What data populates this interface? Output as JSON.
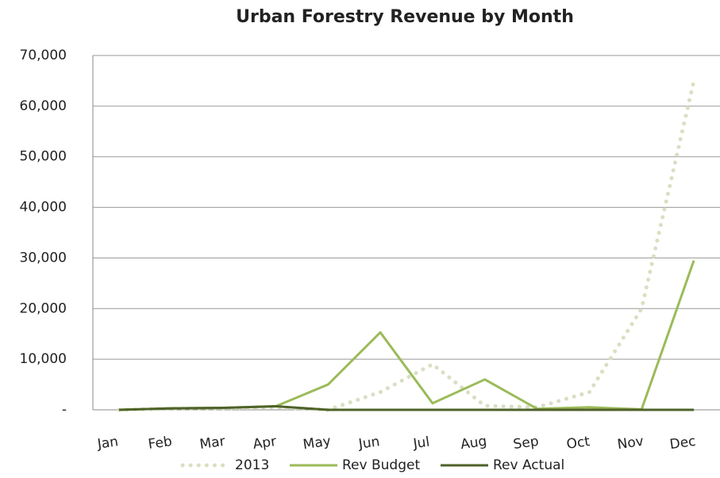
{
  "chart_data": {
    "type": "line",
    "title": "Urban Forestry Revenue by Month",
    "categories": [
      "Jan",
      "Feb",
      "Mar",
      "Apr",
      "May",
      "Jun",
      "Jul",
      "Aug",
      "Sep",
      "Oct",
      "Nov",
      "Dec"
    ],
    "series": [
      {
        "name": "2013",
        "color": "#d7e0c3",
        "dashed": true,
        "values": [
          0,
          200,
          300,
          500,
          0,
          3500,
          9000,
          800,
          500,
          3500,
          20000,
          65000
        ]
      },
      {
        "name": "Rev Budget",
        "color": "#9bbb59",
        "values": [
          0,
          300,
          400,
          700,
          5000,
          15300,
          1300,
          6000,
          200,
          500,
          100,
          29500
        ]
      },
      {
        "name": "Rev Actual",
        "color": "#4f6228",
        "values": [
          0,
          300,
          400,
          700,
          0,
          0,
          0,
          0,
          0,
          0,
          0,
          0
        ]
      }
    ],
    "ylim": [
      0,
      70000
    ],
    "yticks": [
      {
        "value": 0,
        "label": "-"
      },
      {
        "value": 10000,
        "label": "10,000"
      },
      {
        "value": 20000,
        "label": "20,000"
      },
      {
        "value": 30000,
        "label": "30,000"
      },
      {
        "value": 40000,
        "label": "40,000"
      },
      {
        "value": 50000,
        "label": "50,000"
      },
      {
        "value": 60000,
        "label": "60,000"
      },
      {
        "value": 70000,
        "label": "70,000"
      }
    ],
    "grid": true,
    "legend": "bottom"
  }
}
